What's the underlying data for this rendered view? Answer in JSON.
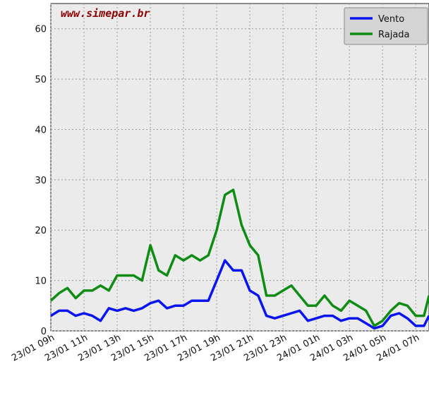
{
  "chart_data": {
    "type": "line",
    "watermark": "www.simepar.br",
    "x": [
      0,
      0.5,
      1,
      1.5,
      2,
      2.5,
      3,
      3.5,
      4,
      4.5,
      5,
      5.5,
      6,
      6.5,
      7,
      7.5,
      8,
      8.5,
      9,
      9.5,
      10,
      10.5,
      11,
      11.5,
      12,
      12.5,
      13,
      13.5,
      14,
      14.5,
      15,
      15.5,
      16,
      16.5,
      17,
      17.5,
      18,
      18.5,
      19,
      19.5,
      20,
      20.5,
      21,
      21.5,
      22,
      22.5,
      22.8
    ],
    "series": [
      {
        "name": "Vento",
        "color": "#0a14f0",
        "values": [
          3,
          4,
          4,
          3,
          3.5,
          3,
          2,
          4.5,
          4,
          4.5,
          4,
          4.5,
          5.5,
          6,
          4.5,
          5,
          5,
          6,
          6,
          6,
          10,
          14,
          12,
          12,
          8,
          7,
          3,
          2.5,
          3,
          3.5,
          4,
          2,
          2.5,
          3,
          3,
          2,
          2.5,
          2.5,
          1.5,
          0.5,
          1,
          3,
          3.5,
          2.5,
          1,
          1,
          3
        ]
      },
      {
        "name": "Rajada",
        "color": "#0f8c14",
        "values": [
          6,
          7.5,
          8.5,
          6.5,
          8,
          8,
          9,
          8,
          11,
          11,
          11,
          10,
          17,
          12,
          11,
          15,
          14,
          15,
          14,
          15,
          20,
          27,
          28,
          21,
          17,
          15,
          7,
          7,
          8,
          9,
          7,
          5,
          5,
          7,
          5,
          4,
          6,
          5,
          4,
          1,
          2,
          4,
          5.5,
          5,
          3,
          3,
          7
        ]
      }
    ],
    "xlim": [
      0,
      22.8
    ],
    "ylim": [
      0,
      65
    ],
    "xticks": [
      {
        "value": 0,
        "label": "23/01 09h"
      },
      {
        "value": 2,
        "label": "23/01 11h"
      },
      {
        "value": 4,
        "label": "23/01 13h"
      },
      {
        "value": 6,
        "label": "23/01 15h"
      },
      {
        "value": 8,
        "label": "23/01 17h"
      },
      {
        "value": 10,
        "label": "23/01 19h"
      },
      {
        "value": 12,
        "label": "23/01 21h"
      },
      {
        "value": 14,
        "label": "23/01 23h"
      },
      {
        "value": 16,
        "label": "24/01 01h"
      },
      {
        "value": 18,
        "label": "24/01 03h"
      },
      {
        "value": 20,
        "label": "24/01 05h"
      },
      {
        "value": 22,
        "label": "24/01 07h"
      }
    ],
    "yticks": [
      0,
      10,
      20,
      30,
      40,
      50,
      60
    ],
    "grid": true,
    "legend": "top-right"
  }
}
